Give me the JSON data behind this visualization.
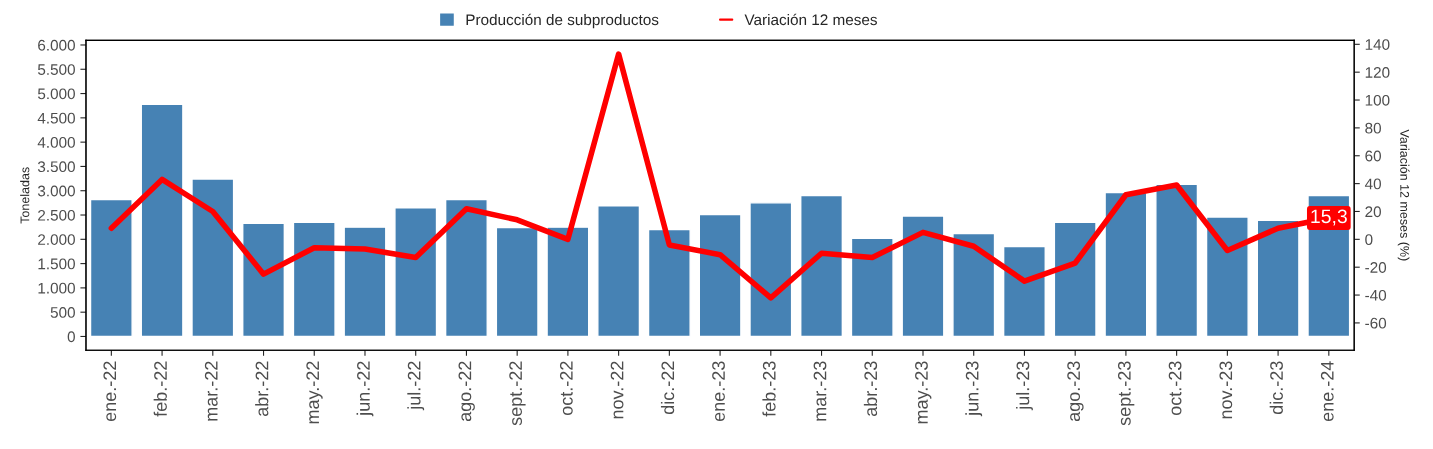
{
  "chart_data": {
    "type": "bar",
    "ylabel": "Toneladas",
    "y2label": "Variación 12 meses (%)",
    "categories": [
      "ene.-22",
      "feb.-22",
      "mar.-22",
      "abr.-22",
      "may.-22",
      "jun.-22",
      "jul.-22",
      "ago.-22",
      "sept.-22",
      "oct.-22",
      "nov.-22",
      "dic.-22",
      "ene.-23",
      "feb.-23",
      "mar.-23",
      "abr.-23",
      "may.-23",
      "jun.-23",
      "jul.-23",
      "ago.-23",
      "sept.-23",
      "oct.-23",
      "nov.-23",
      "dic.-23",
      "ene.-24"
    ],
    "series": [
      {
        "name": "Producción de subproductos",
        "color": "#4682b4",
        "values": [
          2820,
          4780,
          3240,
          2330,
          2350,
          2250,
          2650,
          2820,
          2240,
          2250,
          2690,
          2200,
          2510,
          2750,
          2900,
          2020,
          2480,
          2120,
          1850,
          2350,
          2960,
          3130,
          2460,
          2390,
          2900
        ]
      },
      {
        "name": "Variación 12 meses",
        "type": "line",
        "axis": "y2",
        "color": "#ff0000",
        "line_style": "solid",
        "values": [
          8,
          43,
          20,
          -25,
          -6,
          -7,
          -13,
          22,
          14,
          0,
          133,
          -4,
          -11,
          -42,
          -10,
          -13,
          5,
          -5,
          -30,
          -17,
          32,
          39,
          -8,
          8,
          15.3
        ],
        "value_labels": [
          null,
          null,
          null,
          null,
          null,
          null,
          null,
          null,
          null,
          null,
          null,
          null,
          null,
          null,
          null,
          null,
          null,
          null,
          null,
          null,
          null,
          null,
          null,
          null,
          "15,3"
        ]
      }
    ],
    "ylim": [
      -283,
      6094
    ],
    "yticks": [
      0,
      {
        "value": 500,
        "label": "500"
      },
      {
        "value": 1000,
        "label": "1.000"
      },
      {
        "value": 1500,
        "label": "1.500"
      },
      {
        "value": 2000,
        "label": "2.000"
      },
      {
        "value": 2500,
        "label": "2.500"
      },
      {
        "value": 3000,
        "label": "3.000"
      },
      {
        "value": 3500,
        "label": "3.500"
      },
      {
        "value": 4000,
        "label": "4.000"
      },
      {
        "value": 4500,
        "label": "4.500"
      },
      {
        "value": 5000,
        "label": "5.000"
      },
      {
        "value": 5500,
        "label": "5.500"
      },
      {
        "value": 6000,
        "label": "6.000"
      }
    ],
    "y2lim": [
      -79.6,
      142.8
    ],
    "y2ticks": [
      -60,
      -40,
      -20,
      0,
      20,
      40,
      60,
      80,
      100,
      120,
      140
    ],
    "legend": "top",
    "grid": false
  }
}
